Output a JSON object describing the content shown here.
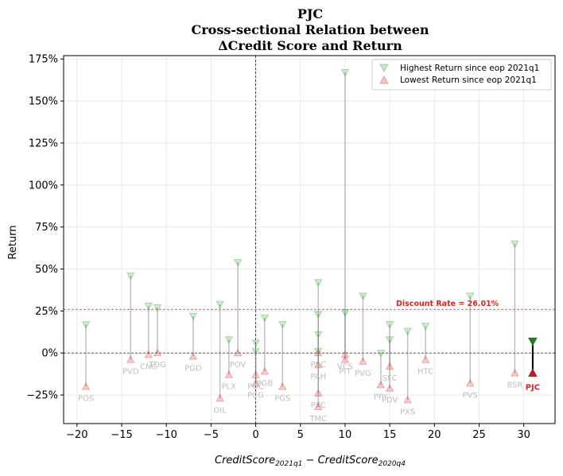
{
  "chart_data": {
    "type": "scatter",
    "title_lines": [
      "PJC",
      "Cross-sectional Relation between",
      "ΔCredit Score and Return"
    ],
    "xlabel_main": "CreditScore",
    "xlabel_sub1": "2021q1",
    "xlabel_mid": " − CreditScore",
    "xlabel_sub2": "2020q4",
    "ylabel": "Return",
    "xlim": [
      -21.5,
      33.5
    ],
    "ylim": [
      -0.42,
      1.77
    ],
    "x_ticks": [
      -20,
      -15,
      -10,
      -5,
      0,
      5,
      10,
      15,
      20,
      25,
      30
    ],
    "x_tick_labels": [
      "−20",
      "−15",
      "−10",
      "−5",
      "0",
      "5",
      "10",
      "15",
      "20",
      "25",
      "30"
    ],
    "y_ticks": [
      -0.25,
      0,
      0.25,
      0.5,
      0.75,
      1.0,
      1.25,
      1.5,
      1.75
    ],
    "y_tick_labels": [
      "−25%",
      "0%",
      "25%",
      "50%",
      "75%",
      "100%",
      "125%",
      "150%",
      "175%"
    ],
    "grid": true,
    "legend_position": "top-right",
    "legend": [
      {
        "label": "Highest Return since eop 2021q1",
        "marker": "triangle-down",
        "color": "#2ca02c"
      },
      {
        "label": "Lowest Return since eop 2021q1",
        "marker": "triangle-up",
        "color": "#d62728"
      }
    ],
    "discount_rate": 0.2601,
    "discount_rate_label": "Discount Rate = 26.01%",
    "series": [
      {
        "name": "Highest Return since eop 2021q1",
        "color": "#2ca02c"
      },
      {
        "name": "Lowest Return since eop 2021q1",
        "color": "#d62728"
      }
    ],
    "points": [
      {
        "ticker": "POS",
        "x": -19,
        "high": 0.17,
        "low": -0.2
      },
      {
        "ticker": "PVD",
        "x": -14,
        "high": 0.46,
        "low": -0.04
      },
      {
        "ticker": "CNC",
        "x": -12,
        "high": 0.28,
        "low": -0.01
      },
      {
        "ticker": "TDG",
        "x": -11,
        "high": 0.27,
        "low": 0.0
      },
      {
        "ticker": "PGD",
        "x": -7,
        "high": 0.22,
        "low": -0.02
      },
      {
        "ticker": "OIL",
        "x": -4,
        "high": 0.29,
        "low": -0.27
      },
      {
        "ticker": "PLX",
        "x": -3,
        "high": 0.08,
        "low": -0.13
      },
      {
        "ticker": "POV",
        "x": -2,
        "high": 0.54,
        "low": 0.0
      },
      {
        "ticker": "PCG",
        "x": 0,
        "high": 0.06,
        "low": -0.18
      },
      {
        "ticker": "PGC",
        "x": 0,
        "high": 0.01,
        "low": -0.13
      },
      {
        "ticker": "PGB",
        "x": 1,
        "high": 0.21,
        "low": -0.11
      },
      {
        "ticker": "PGS",
        "x": 3,
        "high": 0.17,
        "low": -0.2
      },
      {
        "ticker": "PXC",
        "x": 7,
        "high": 0.42,
        "low": -0.24
      },
      {
        "ticker": "TMC",
        "x": 7,
        "high": 0.11,
        "low": -0.32
      },
      {
        "ticker": "PAH",
        "x": 7,
        "high": 0.01,
        "low": -0.07
      },
      {
        "ticker": "PSC",
        "x": 7,
        "high": 0.23,
        "low": 0.0
      },
      {
        "ticker": "VCS",
        "x": 10,
        "high": 1.67,
        "low": -0.01
      },
      {
        "ticker": "PIT",
        "x": 10,
        "high": 0.24,
        "low": -0.04
      },
      {
        "ticker": "PVG",
        "x": 12,
        "high": 0.34,
        "low": -0.05
      },
      {
        "ticker": "PPY",
        "x": 14,
        "high": 0.0,
        "low": -0.19
      },
      {
        "ticker": "PDV",
        "x": 15,
        "high": 0.17,
        "low": -0.21
      },
      {
        "ticker": "SFC",
        "x": 15,
        "high": 0.08,
        "low": -0.08
      },
      {
        "ticker": "PXS",
        "x": 17,
        "high": 0.13,
        "low": -0.28
      },
      {
        "ticker": "HTC",
        "x": 19,
        "high": 0.16,
        "low": -0.04
      },
      {
        "ticker": "PVS",
        "x": 24,
        "high": 0.34,
        "low": -0.18
      },
      {
        "ticker": "BSR",
        "x": 29,
        "high": 0.65,
        "low": -0.12
      }
    ],
    "focus": {
      "ticker": "PJC",
      "x": 31,
      "high": 0.07,
      "low": -0.12
    }
  }
}
